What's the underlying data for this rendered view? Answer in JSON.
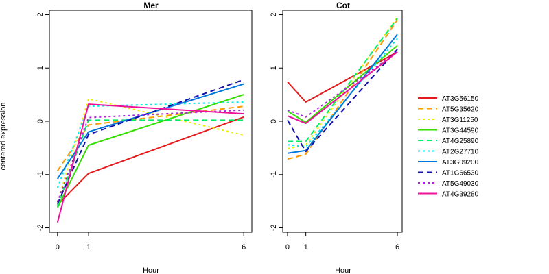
{
  "chart_data": {
    "type": "line",
    "ylabel": "centered expression",
    "xlabel": "Hour",
    "x": [
      "0",
      "1",
      "6"
    ],
    "ylim": [
      -2,
      2
    ],
    "yticks": [
      "-2",
      "-1",
      "0",
      "1",
      "2"
    ],
    "grid": false,
    "legend_position": "right",
    "series": [
      {
        "name": "AT3G56150",
        "color": "#e41a1c",
        "dash": "solid"
      },
      {
        "name": "AT5G35620",
        "color": "#ff9900",
        "dash": "dashed"
      },
      {
        "name": "AT3G11250",
        "color": "#eeee00",
        "dash": "dotted"
      },
      {
        "name": "AT3G44590",
        "color": "#33dd00",
        "dash": "solid"
      },
      {
        "name": "AT4G25890",
        "color": "#00ee66",
        "dash": "dashed"
      },
      {
        "name": "AT2G27710",
        "color": "#00eeee",
        "dash": "dotted"
      },
      {
        "name": "AT3G09200",
        "color": "#0077dd",
        "dash": "solid"
      },
      {
        "name": "AT1G66530",
        "color": "#1111aa",
        "dash": "dashed"
      },
      {
        "name": "AT5G49030",
        "color": "#aa22dd",
        "dash": "dotted"
      },
      {
        "name": "AT4G39280",
        "color": "#ee1199",
        "dash": "solid"
      }
    ],
    "panels": [
      {
        "title": "Mer",
        "values": [
          [
            -1.57,
            -0.98,
            0.08
          ],
          [
            -0.93,
            -0.07,
            0.28
          ],
          [
            -1.52,
            0.42,
            -0.26
          ],
          [
            -1.62,
            -0.45,
            0.5
          ],
          [
            -1.6,
            0.02,
            0.02
          ],
          [
            -1.25,
            0.28,
            0.36
          ],
          [
            -1.08,
            -0.2,
            0.7
          ],
          [
            -1.55,
            -0.25,
            0.78
          ],
          [
            -1.52,
            0.07,
            0.21
          ],
          [
            -1.9,
            0.32,
            0.14
          ]
        ]
      },
      {
        "title": "Cot",
        "values": [
          [
            0.74,
            0.36,
            1.3
          ],
          [
            -0.71,
            -0.62,
            1.9
          ],
          [
            -0.51,
            -0.45,
            1.95
          ],
          [
            0.19,
            -0.02,
            1.42
          ],
          [
            -0.38,
            -0.38,
            1.93
          ],
          [
            -0.44,
            -0.48,
            1.55
          ],
          [
            -0.6,
            -0.55,
            1.63
          ],
          [
            0.02,
            -0.57,
            1.35
          ],
          [
            0.21,
            0.08,
            1.3
          ],
          [
            0.1,
            -0.04,
            1.3
          ]
        ]
      }
    ]
  }
}
